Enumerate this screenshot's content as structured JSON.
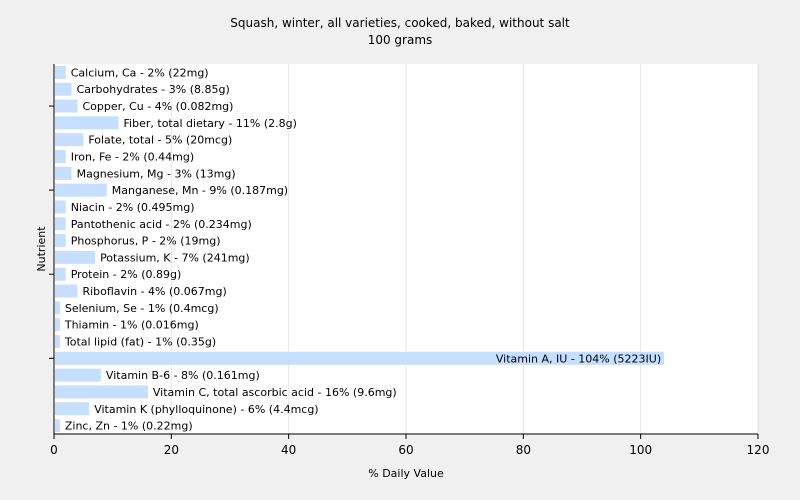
{
  "chart_data": {
    "type": "bar",
    "orientation": "horizontal",
    "title": "Squash, winter, all varieties, cooked, baked, without salt",
    "subtitle": "100 grams",
    "xlabel": "% Daily Value",
    "ylabel": "Nutrient",
    "xlim": [
      0,
      120
    ],
    "xticks": [
      0,
      20,
      40,
      60,
      80,
      100,
      120
    ],
    "grid": true,
    "bar_color": "#c6deff",
    "categories": [
      "Calcium, Ca - 2% (22mg)",
      "Carbohydrates - 3% (8.85g)",
      "Copper, Cu - 4% (0.082mg)",
      "Fiber, total dietary - 11% (2.8g)",
      "Folate, total - 5% (20mcg)",
      "Iron, Fe - 2% (0.44mg)",
      "Magnesium, Mg - 3% (13mg)",
      "Manganese, Mn - 9% (0.187mg)",
      "Niacin - 2% (0.495mg)",
      "Pantothenic acid - 2% (0.234mg)",
      "Phosphorus, P - 2% (19mg)",
      "Potassium, K - 7% (241mg)",
      "Protein - 2% (0.89g)",
      "Riboflavin - 4% (0.067mg)",
      "Selenium, Se - 1% (0.4mcg)",
      "Thiamin - 1% (0.016mg)",
      "Total lipid (fat) - 1% (0.35g)",
      "Vitamin A, IU - 104% (5223IU)",
      "Vitamin B-6 - 8% (0.161mg)",
      "Vitamin C, total ascorbic acid - 16% (9.6mg)",
      "Vitamin K (phylloquinone) - 6% (4.4mcg)",
      "Zinc, Zn - 1% (0.22mg)"
    ],
    "values": [
      2,
      3,
      4,
      11,
      5,
      2,
      3,
      9,
      2,
      2,
      2,
      7,
      2,
      4,
      1,
      1,
      1,
      104,
      8,
      16,
      6,
      1
    ]
  }
}
